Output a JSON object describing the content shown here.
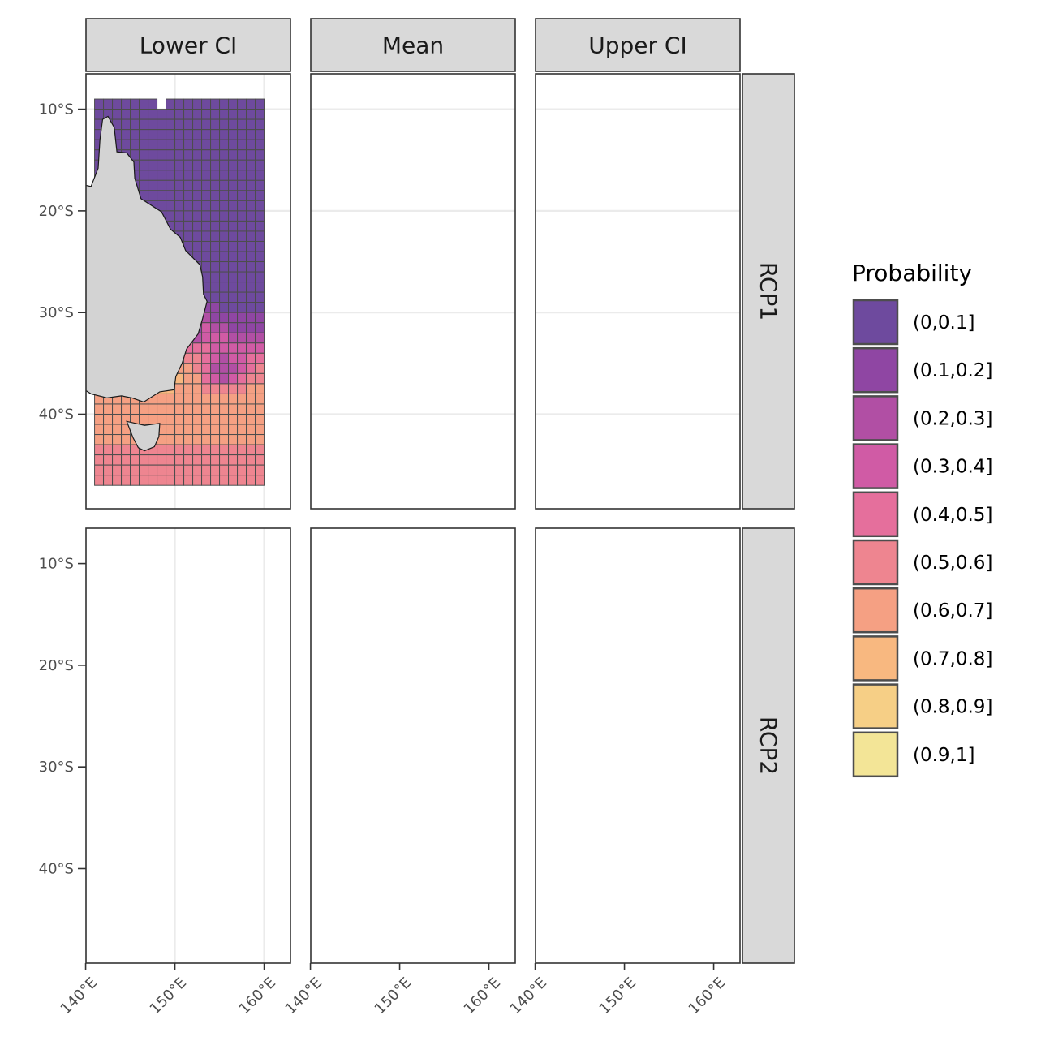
{
  "columns": [
    "Lower CI",
    "Mean",
    "Upper CI"
  ],
  "rows": [
    "RCP1",
    "RCP2"
  ],
  "legend": {
    "title": "Probability",
    "items": [
      {
        "label": "(0,0.1]",
        "color": "#6e4a9e"
      },
      {
        "label": "(0.1,0.2]",
        "color": "#8f46a3"
      },
      {
        "label": "(0.2,0.3]",
        "color": "#b14fa4"
      },
      {
        "label": "(0.3,0.4]",
        "color": "#d05ba5"
      },
      {
        "label": "(0.4,0.5]",
        "color": "#e56f9c"
      },
      {
        "label": "(0.5,0.6]",
        "color": "#ee8590"
      },
      {
        "label": "(0.6,0.7]",
        "color": "#f5a083"
      },
      {
        "label": "(0.7,0.8]",
        "color": "#f8b880"
      },
      {
        "label": "(0.8,0.9]",
        "color": "#f6cf86"
      },
      {
        "label": "(0.9,1]",
        "color": "#f3e597"
      }
    ]
  },
  "axes": {
    "y_ticks": [
      {
        "lat": -10,
        "label": "10°S"
      },
      {
        "lat": -20,
        "label": "20°S"
      },
      {
        "lat": -30,
        "label": "30°S"
      },
      {
        "lat": -40,
        "label": "40°S"
      }
    ],
    "x_ticks": [
      {
        "lon": 140,
        "label": "140°E"
      },
      {
        "lon": 150,
        "label": "150°E"
      },
      {
        "lon": 160,
        "label": "160°E"
      }
    ]
  },
  "map_data": {
    "grid": {
      "lon_min": 141,
      "lon_max": 160,
      "lat_min": -47,
      "lat_max": -9,
      "cell_deg": 1
    },
    "land_color": "#d3d3d3",
    "background_gray": "#d9d9d9"
  }
}
